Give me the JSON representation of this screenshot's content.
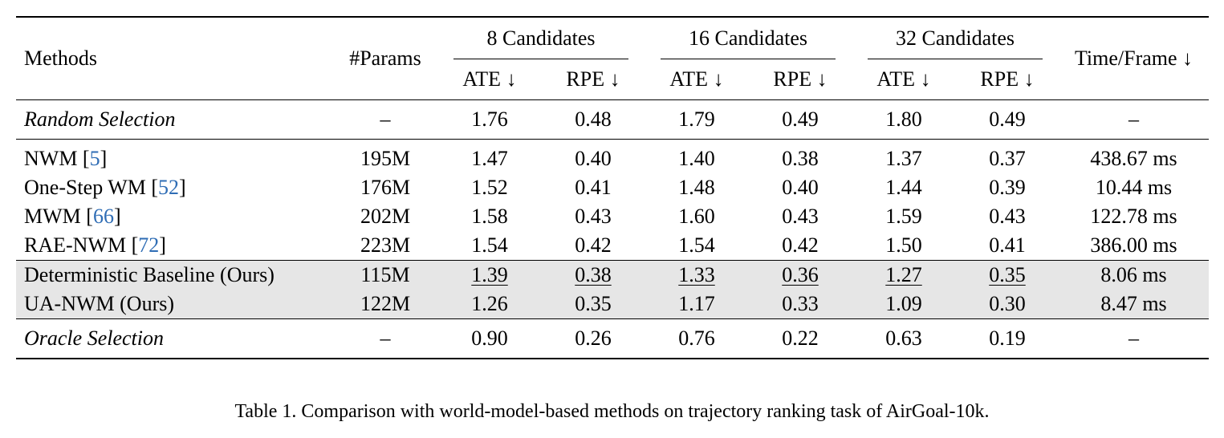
{
  "header": {
    "methods": "Methods",
    "params": "#Params",
    "groups": [
      "8 Candidates",
      "16 Candidates",
      "32 Candidates"
    ],
    "ate": "ATE ↓",
    "rpe": "RPE ↓",
    "time": "Time/Frame ↓"
  },
  "random": {
    "method": "Random Selection",
    "params": "–",
    "values": [
      "1.76",
      "0.48",
      "1.79",
      "0.49",
      "1.80",
      "0.49"
    ],
    "time": "–"
  },
  "baselines": [
    {
      "name": "NWM [",
      "cite": "5",
      "close": "]",
      "params": "195M",
      "values": [
        "1.47",
        "0.40",
        "1.40",
        "0.38",
        "1.37",
        "0.37"
      ],
      "time": "438.67 ms"
    },
    {
      "name": "One-Step WM [",
      "cite": "52",
      "close": "]",
      "params": "176M",
      "values": [
        "1.52",
        "0.41",
        "1.48",
        "0.40",
        "1.44",
        "0.39"
      ],
      "time": "10.44 ms"
    },
    {
      "name": "MWM [",
      "cite": "66",
      "close": "]",
      "params": "202M",
      "values": [
        "1.58",
        "0.43",
        "1.60",
        "0.43",
        "1.59",
        "0.43"
      ],
      "time": "122.78 ms"
    },
    {
      "name": "RAE-NWM [",
      "cite": "72",
      "close": "]",
      "params": "223M",
      "values": [
        "1.54",
        "0.42",
        "1.54",
        "0.42",
        "1.50",
        "0.41"
      ],
      "time": "386.00 ms"
    }
  ],
  "ours": [
    {
      "name": "Deterministic Baseline (Ours)",
      "params": "115M",
      "values": [
        "1.39",
        "0.38",
        "1.33",
        "0.36",
        "1.27",
        "0.35"
      ],
      "time": "8.06 ms",
      "style": "u"
    },
    {
      "name": "UA-NWM (Ours)",
      "params": "122M",
      "values": [
        "1.26",
        "0.35",
        "1.17",
        "0.33",
        "1.09",
        "0.30"
      ],
      "time": "8.47 ms",
      "style": "b"
    }
  ],
  "oracle": {
    "method": "Oracle Selection",
    "params": "–",
    "values": [
      "0.90",
      "0.26",
      "0.76",
      "0.22",
      "0.63",
      "0.19"
    ],
    "time": "–"
  },
  "caption": "Table 1. Comparison with world-model-based methods on trajectory ranking task of AirGoal-10k."
}
